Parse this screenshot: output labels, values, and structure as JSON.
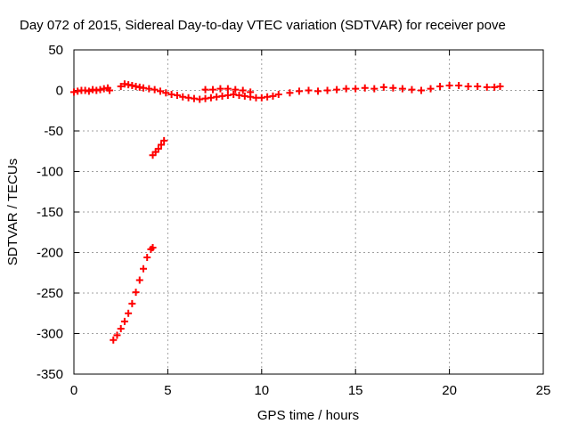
{
  "chart_data": {
    "type": "scatter",
    "title": "Day 072 of 2015, Sidereal Day-to-day VTEC variation (SDTVAR) for receiver pove",
    "xlabel": "GPS time / hours",
    "ylabel": "SDTVAR / TECUs",
    "xlim": [
      0,
      25
    ],
    "ylim": [
      -350,
      50
    ],
    "xticks": [
      0,
      5,
      10,
      15,
      20,
      25
    ],
    "yticks": [
      50,
      0,
      -50,
      -100,
      -150,
      -200,
      -250,
      -300,
      -350
    ],
    "grid": true,
    "legend": "none",
    "marker": "+",
    "colors": {
      "series": "#ff0000",
      "axes": "#000000",
      "grid": "#a0a0a0"
    },
    "series": [
      {
        "points": [
          [
            0.0,
            -2
          ],
          [
            0.2,
            -1
          ],
          [
            0.4,
            0
          ],
          [
            0.6,
            0
          ],
          [
            0.8,
            -1
          ],
          [
            1.0,
            1
          ],
          [
            1.2,
            0
          ],
          [
            1.4,
            1
          ],
          [
            1.6,
            2
          ],
          [
            1.8,
            3
          ],
          [
            1.9,
            0
          ],
          [
            2.5,
            5
          ],
          [
            2.7,
            8
          ],
          [
            2.9,
            7
          ],
          [
            3.1,
            6
          ],
          [
            3.3,
            5
          ],
          [
            3.5,
            4
          ],
          [
            3.7,
            3
          ],
          [
            4.0,
            2
          ],
          [
            4.3,
            1
          ],
          [
            4.6,
            -1
          ],
          [
            4.9,
            -3
          ],
          [
            5.2,
            -5
          ],
          [
            5.5,
            -6
          ],
          [
            5.8,
            -8
          ],
          [
            6.1,
            -9
          ],
          [
            6.4,
            -10
          ],
          [
            6.7,
            -11
          ],
          [
            7.0,
            -10
          ],
          [
            7.3,
            -9
          ],
          [
            7.6,
            -8
          ],
          [
            7.9,
            -7
          ],
          [
            8.2,
            -6
          ],
          [
            8.5,
            -5
          ],
          [
            8.8,
            -6
          ],
          [
            9.1,
            -7
          ],
          [
            9.4,
            -8
          ],
          [
            9.7,
            -9
          ],
          [
            10.0,
            -9
          ],
          [
            10.3,
            -8
          ],
          [
            10.6,
            -7
          ],
          [
            10.9,
            -5
          ],
          [
            7.0,
            1
          ],
          [
            7.4,
            1
          ],
          [
            7.8,
            2
          ],
          [
            8.2,
            2
          ],
          [
            8.6,
            1
          ],
          [
            9.0,
            0
          ],
          [
            9.4,
            -2
          ],
          [
            11.5,
            -3
          ],
          [
            12.0,
            -1
          ],
          [
            12.5,
            0
          ],
          [
            13.0,
            -1
          ],
          [
            13.5,
            0
          ],
          [
            14.0,
            1
          ],
          [
            14.5,
            2
          ],
          [
            15.0,
            2
          ],
          [
            15.5,
            3
          ],
          [
            16.0,
            2
          ],
          [
            16.5,
            4
          ],
          [
            17.0,
            3
          ],
          [
            17.5,
            2
          ],
          [
            18.0,
            1
          ],
          [
            18.5,
            0
          ],
          [
            19.0,
            2
          ],
          [
            19.5,
            5
          ],
          [
            20.0,
            6
          ],
          [
            20.5,
            6
          ],
          [
            21.0,
            5
          ],
          [
            21.5,
            5
          ],
          [
            22.0,
            4
          ],
          [
            22.4,
            4
          ],
          [
            22.7,
            5
          ],
          [
            4.2,
            -80
          ],
          [
            4.35,
            -76
          ],
          [
            4.5,
            -72
          ],
          [
            4.65,
            -67
          ],
          [
            4.8,
            -62
          ],
          [
            2.1,
            -308
          ],
          [
            2.3,
            -302
          ],
          [
            2.5,
            -294
          ],
          [
            2.7,
            -285
          ],
          [
            2.9,
            -275
          ],
          [
            3.1,
            -263
          ],
          [
            3.3,
            -249
          ],
          [
            3.5,
            -234
          ],
          [
            3.7,
            -220
          ],
          [
            3.9,
            -206
          ],
          [
            4.1,
            -196
          ],
          [
            4.2,
            -194
          ]
        ]
      }
    ]
  }
}
